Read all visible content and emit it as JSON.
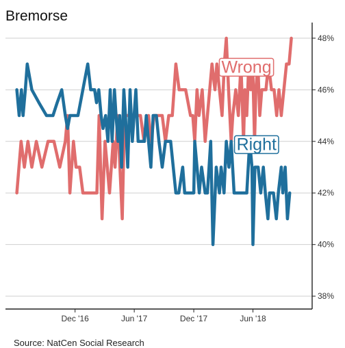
{
  "chart_data": {
    "type": "line",
    "title": "Bremorse",
    "source": "Source: NatCen Social Research",
    "y_axis": {
      "position": "right",
      "range": [
        37.5,
        48.5
      ],
      "ticks": [
        38,
        40,
        42,
        44,
        46,
        48
      ],
      "tick_labels": [
        "38%",
        "40%",
        "42%",
        "44%",
        "46%",
        "48%"
      ],
      "grid": true
    },
    "x_axis": {
      "range": [
        "2016-05-01",
        "2018-11-30"
      ],
      "ticks": [
        "2016-12-01",
        "2017-06-01",
        "2017-12-01",
        "2018-06-01"
      ],
      "tick_labels": [
        "Dec '16",
        "Jun '17",
        "Dec '17",
        "Jun '18"
      ],
      "grid": false
    },
    "series": [
      {
        "name": "Wrong",
        "color": "#E06D6D",
        "label_on_chart": "Wrong",
        "points": [
          [
            "2016-06-05",
            42
          ],
          [
            "2016-06-18",
            44
          ],
          [
            "2016-06-28",
            43
          ],
          [
            "2016-07-09",
            44
          ],
          [
            "2016-07-21",
            43
          ],
          [
            "2016-08-04",
            44
          ],
          [
            "2016-08-21",
            43
          ],
          [
            "2016-09-09",
            44
          ],
          [
            "2016-09-27",
            44
          ],
          [
            "2016-10-15",
            43
          ],
          [
            "2016-11-01",
            44
          ],
          [
            "2016-11-08",
            45
          ],
          [
            "2016-11-15",
            42
          ],
          [
            "2016-11-26",
            44
          ],
          [
            "2016-12-04",
            43
          ],
          [
            "2016-12-15",
            43
          ],
          [
            "2016-12-25",
            42
          ],
          [
            "2017-01-11",
            42
          ],
          [
            "2017-02-06",
            42
          ],
          [
            "2017-02-13",
            45
          ],
          [
            "2017-02-22",
            41
          ],
          [
            "2017-03-03",
            44
          ],
          [
            "2017-03-10",
            43
          ],
          [
            "2017-03-17",
            42
          ],
          [
            "2017-03-28",
            44
          ],
          [
            "2017-04-03",
            43
          ],
          [
            "2017-04-11",
            45
          ],
          [
            "2017-04-18",
            43
          ],
          [
            "2017-04-25",
            41
          ],
          [
            "2017-05-02",
            45
          ],
          [
            "2017-05-09",
            45
          ],
          [
            "2017-05-20",
            45
          ],
          [
            "2017-06-05",
            45
          ],
          [
            "2017-06-20",
            45
          ],
          [
            "2017-07-01",
            44
          ],
          [
            "2017-07-15",
            45
          ],
          [
            "2017-07-23",
            44
          ],
          [
            "2017-08-01",
            45
          ],
          [
            "2017-08-12",
            45
          ],
          [
            "2017-08-26",
            45
          ],
          [
            "2017-09-05",
            44
          ],
          [
            "2017-09-15",
            45
          ],
          [
            "2017-09-26",
            45
          ],
          [
            "2017-10-07",
            47
          ],
          [
            "2017-10-17",
            46
          ],
          [
            "2017-11-06",
            46
          ],
          [
            "2017-11-21",
            45
          ],
          [
            "2017-11-28",
            45
          ],
          [
            "2017-12-04",
            44
          ],
          [
            "2017-12-11",
            46
          ],
          [
            "2017-12-17",
            45
          ],
          [
            "2017-12-27",
            46
          ],
          [
            "2018-01-05",
            44
          ],
          [
            "2018-01-12",
            45
          ],
          [
            "2018-01-26",
            47
          ],
          [
            "2018-02-04",
            46
          ],
          [
            "2018-02-10",
            47
          ],
          [
            "2018-02-18",
            46
          ],
          [
            "2018-02-26",
            45
          ],
          [
            "2018-03-05",
            47
          ],
          [
            "2018-03-11",
            48
          ],
          [
            "2018-03-18",
            46
          ],
          [
            "2018-03-26",
            44
          ],
          [
            "2018-03-31",
            45
          ],
          [
            "2018-04-09",
            46
          ],
          [
            "2018-04-17",
            45
          ],
          [
            "2018-04-25",
            47
          ],
          [
            "2018-05-03",
            44
          ],
          [
            "2018-05-07",
            46
          ],
          [
            "2018-05-13",
            45
          ],
          [
            "2018-05-19",
            47
          ],
          [
            "2018-05-25",
            46
          ],
          [
            "2018-05-31",
            47
          ],
          [
            "2018-06-06",
            44
          ],
          [
            "2018-06-10",
            46
          ],
          [
            "2018-06-16",
            47
          ],
          [
            "2018-06-22",
            45
          ],
          [
            "2018-06-28",
            46
          ],
          [
            "2018-07-04",
            46
          ],
          [
            "2018-07-11",
            46
          ],
          [
            "2018-07-19",
            47
          ],
          [
            "2018-07-28",
            46
          ],
          [
            "2018-08-05",
            46
          ],
          [
            "2018-08-13",
            45
          ],
          [
            "2018-08-20",
            46
          ],
          [
            "2018-08-27",
            45
          ],
          [
            "2018-09-04",
            46
          ],
          [
            "2018-09-12",
            47
          ],
          [
            "2018-09-20",
            47
          ],
          [
            "2018-09-27",
            48
          ]
        ]
      },
      {
        "name": "Right",
        "color": "#1F6F9C",
        "label_on_chart": "Right",
        "points": [
          [
            "2016-06-05",
            46
          ],
          [
            "2016-06-12",
            45
          ],
          [
            "2016-06-19",
            46
          ],
          [
            "2016-06-24",
            45
          ],
          [
            "2016-07-01",
            46
          ],
          [
            "2016-07-07",
            47
          ],
          [
            "2016-07-21",
            46
          ],
          [
            "2016-08-12",
            45.5
          ],
          [
            "2016-09-04",
            45
          ],
          [
            "2016-09-24",
            45
          ],
          [
            "2016-10-07",
            45.5
          ],
          [
            "2016-10-21",
            46
          ],
          [
            "2016-11-01",
            45
          ],
          [
            "2016-11-08",
            44.5
          ],
          [
            "2016-11-15",
            45
          ],
          [
            "2016-11-27",
            45
          ],
          [
            "2016-12-10",
            45
          ],
          [
            "2017-01-09",
            47
          ],
          [
            "2017-01-18",
            46
          ],
          [
            "2017-01-30",
            46
          ],
          [
            "2017-02-05",
            45.5
          ],
          [
            "2017-02-12",
            46
          ],
          [
            "2017-02-19",
            45
          ],
          [
            "2017-02-25",
            44.5
          ],
          [
            "2017-03-05",
            45
          ],
          [
            "2017-03-12",
            44
          ],
          [
            "2017-03-19",
            46
          ],
          [
            "2017-03-25",
            44
          ],
          [
            "2017-04-01",
            46
          ],
          [
            "2017-04-06",
            45
          ],
          [
            "2017-04-12",
            44
          ],
          [
            "2017-04-17",
            45
          ],
          [
            "2017-04-23",
            43
          ],
          [
            "2017-04-30",
            46
          ],
          [
            "2017-05-05",
            45
          ],
          [
            "2017-05-12",
            43
          ],
          [
            "2017-05-19",
            46
          ],
          [
            "2017-05-26",
            44
          ],
          [
            "2017-06-06",
            46
          ],
          [
            "2017-06-13",
            44
          ],
          [
            "2017-06-20",
            44
          ],
          [
            "2017-07-02",
            44
          ],
          [
            "2017-07-08",
            45
          ],
          [
            "2017-07-15",
            44
          ],
          [
            "2017-07-22",
            43
          ],
          [
            "2017-07-29",
            45
          ],
          [
            "2017-08-08",
            45
          ],
          [
            "2017-08-16",
            44
          ],
          [
            "2017-08-26",
            43
          ],
          [
            "2017-09-05",
            44
          ],
          [
            "2017-09-21",
            44
          ],
          [
            "2017-10-07",
            42
          ],
          [
            "2017-10-16",
            42
          ],
          [
            "2017-10-28",
            43
          ],
          [
            "2017-11-03",
            42
          ],
          [
            "2017-11-17",
            42
          ],
          [
            "2017-12-01",
            42
          ],
          [
            "2017-12-04",
            44
          ],
          [
            "2017-12-11",
            43
          ],
          [
            "2017-12-18",
            42
          ],
          [
            "2017-12-25",
            43
          ],
          [
            "2018-01-05",
            42
          ],
          [
            "2018-01-12",
            42
          ],
          [
            "2018-01-22",
            44
          ],
          [
            "2018-01-29",
            40
          ],
          [
            "2018-02-08",
            43
          ],
          [
            "2018-02-18",
            42
          ],
          [
            "2018-02-23",
            43
          ],
          [
            "2018-03-04",
            42
          ],
          [
            "2018-03-11",
            44
          ],
          [
            "2018-03-19",
            43
          ],
          [
            "2018-03-26",
            44
          ],
          [
            "2018-04-04",
            42
          ],
          [
            "2018-04-14",
            42
          ],
          [
            "2018-04-21",
            42
          ],
          [
            "2018-04-29",
            42
          ],
          [
            "2018-05-13",
            42
          ],
          [
            "2018-05-22",
            44
          ],
          [
            "2018-05-29",
            43
          ],
          [
            "2018-06-01",
            40
          ],
          [
            "2018-06-07",
            43
          ],
          [
            "2018-06-12",
            43
          ],
          [
            "2018-06-17",
            43
          ],
          [
            "2018-06-25",
            42
          ],
          [
            "2018-07-03",
            43
          ],
          [
            "2018-07-09",
            42
          ],
          [
            "2018-07-17",
            41
          ],
          [
            "2018-07-22",
            42
          ],
          [
            "2018-07-29",
            42
          ],
          [
            "2018-08-03",
            42
          ],
          [
            "2018-08-12",
            41
          ],
          [
            "2018-08-18",
            42
          ],
          [
            "2018-08-27",
            43
          ],
          [
            "2018-09-01",
            42
          ],
          [
            "2018-09-08",
            43
          ],
          [
            "2018-09-15",
            41
          ],
          [
            "2018-09-22",
            42
          ]
        ]
      }
    ]
  }
}
